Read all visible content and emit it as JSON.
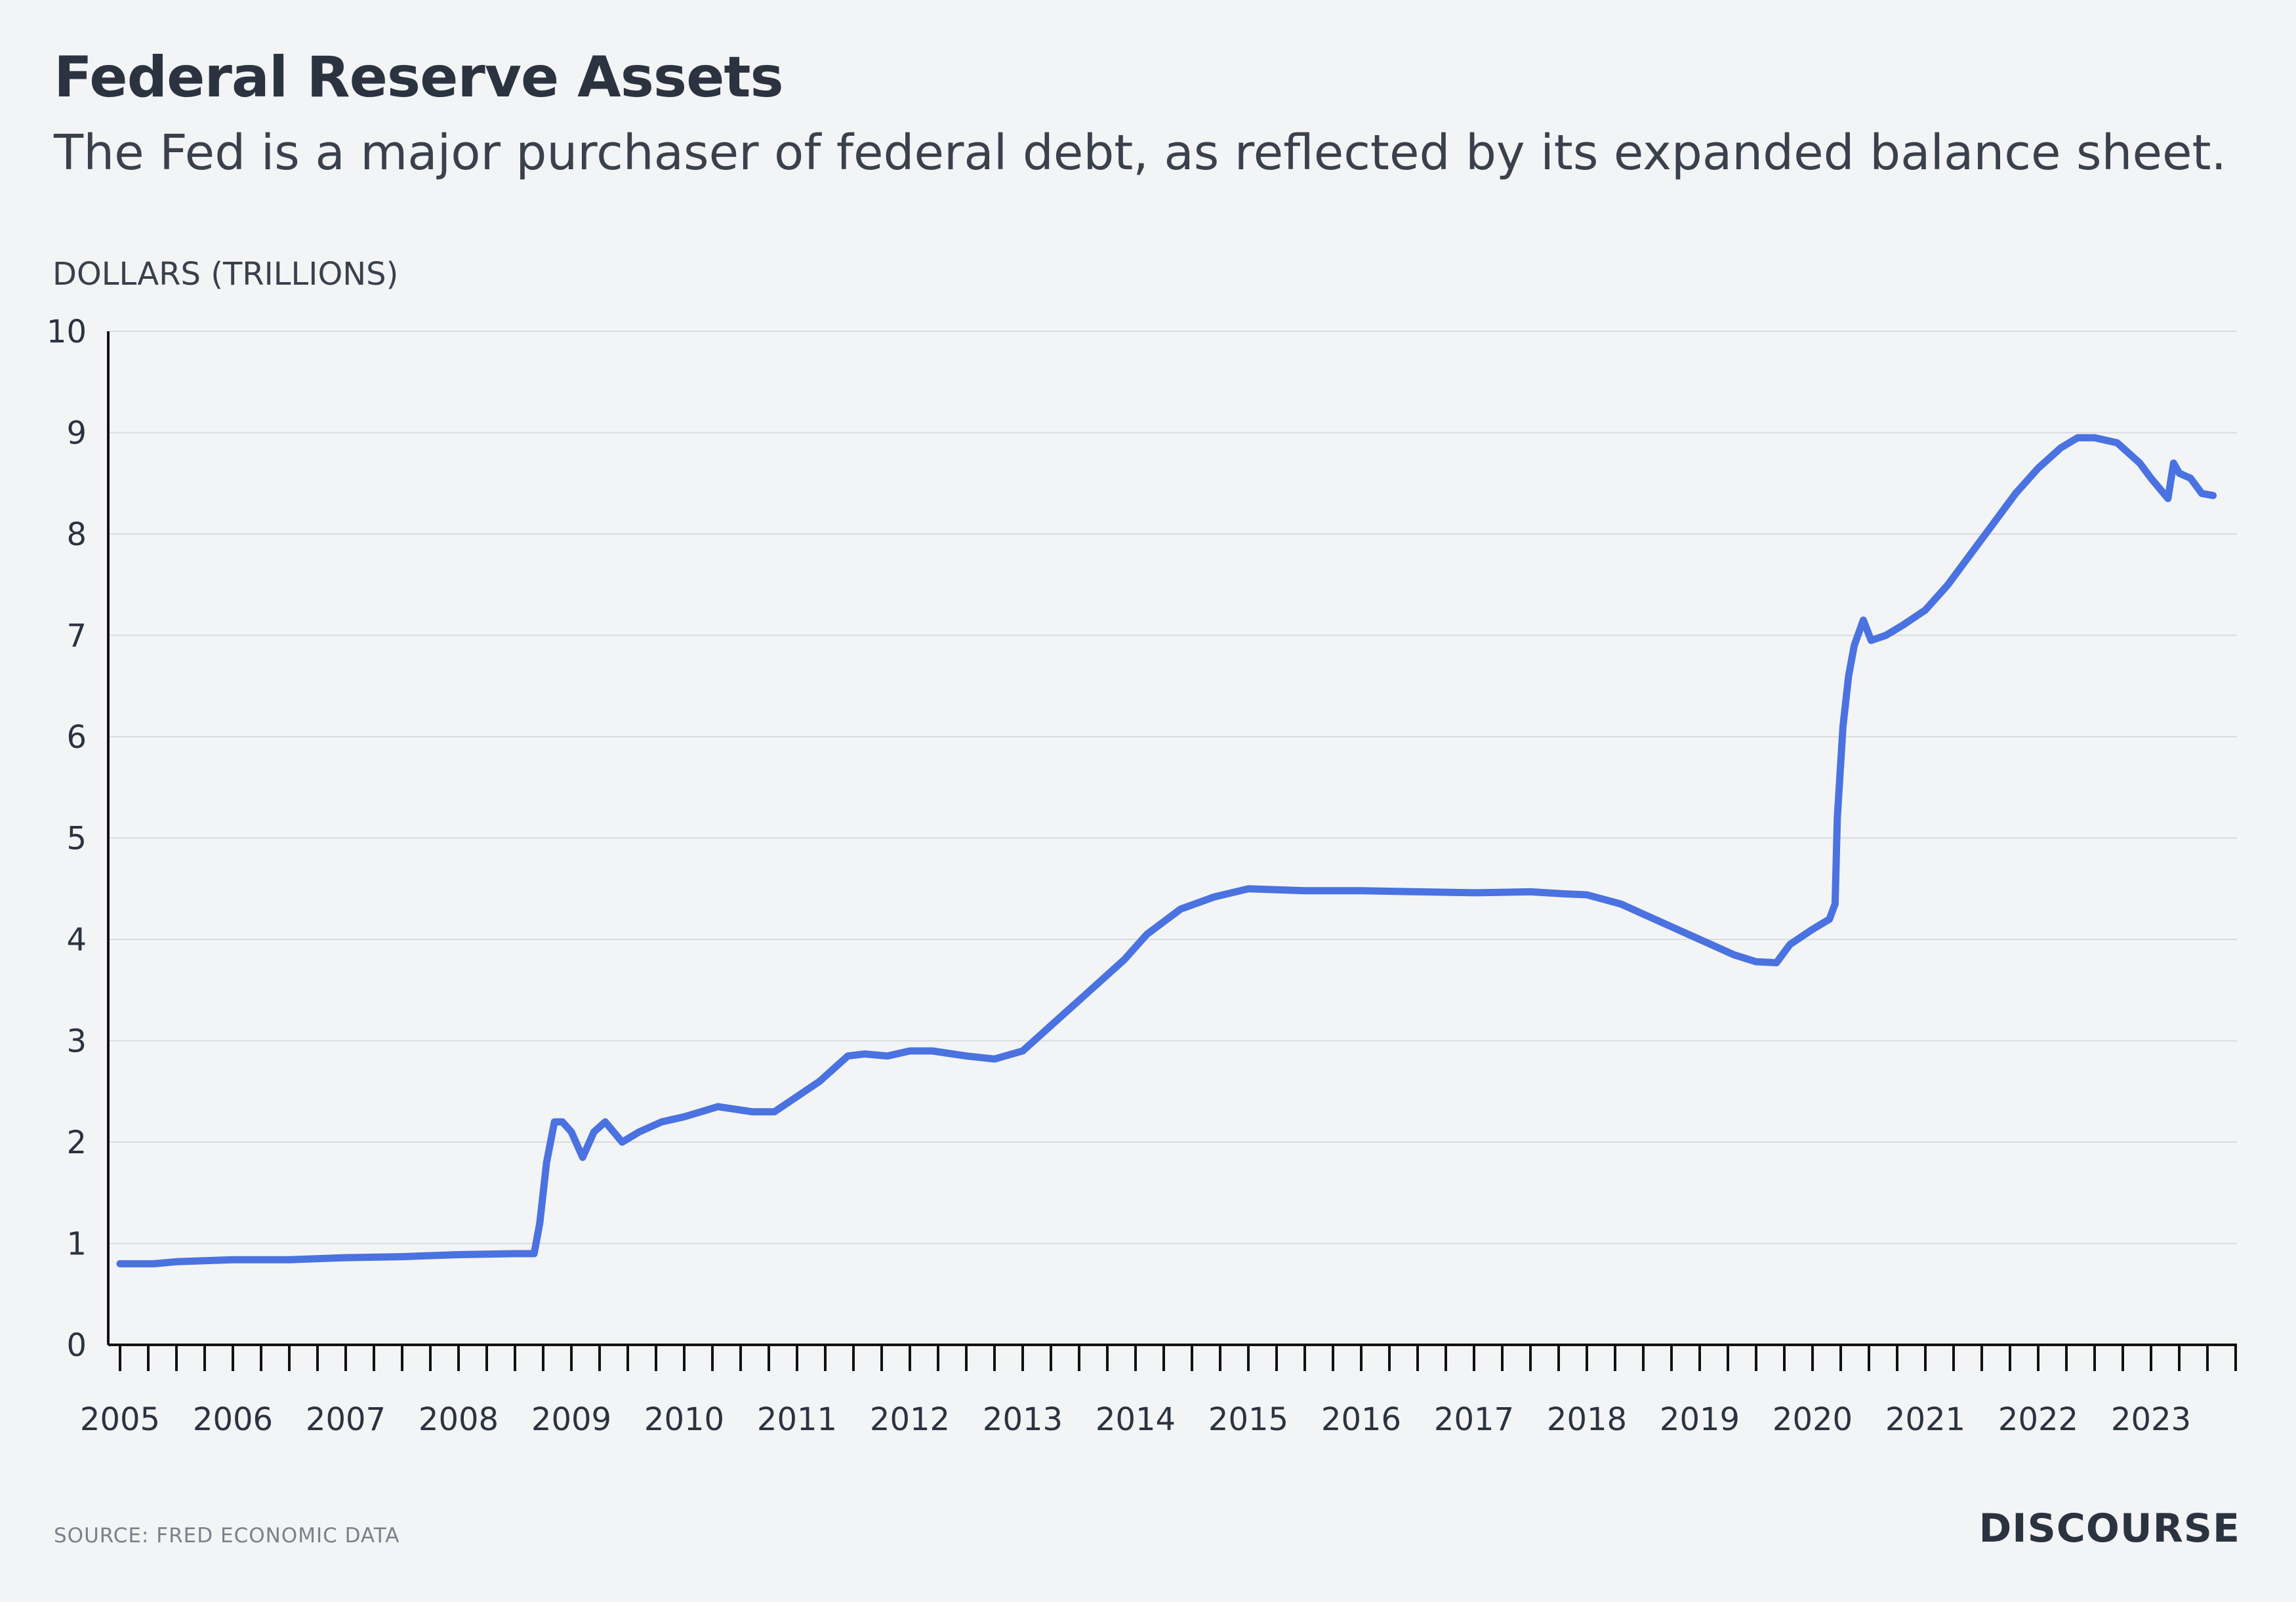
{
  "header": {
    "title": "Federal Reserve Assets",
    "subtitle": "The Fed is a major purchaser of federal debt, as reflected by its expanded balance sheet."
  },
  "footer": {
    "source": "SOURCE: FRED ECONOMIC DATA",
    "brand": "DISCOURSE"
  },
  "colors": {
    "line": "#4a72e0",
    "grid": "#d9dbde",
    "axis": "#111111",
    "background": "#f3f4f5"
  },
  "chart_data": {
    "type": "line",
    "title": "Federal Reserve Assets",
    "ylabel": "DOLLARS (TRILLIONS)",
    "xlabel": "",
    "ylim": [
      0,
      10
    ],
    "xlim": [
      2005,
      2024.2
    ],
    "y_ticks": [
      0,
      1,
      2,
      3,
      4,
      5,
      6,
      7,
      8,
      9,
      10
    ],
    "x_ticks": [
      2005,
      2006,
      2007,
      2008,
      2009,
      2010,
      2011,
      2012,
      2013,
      2014,
      2015,
      2016,
      2017,
      2018,
      2019,
      2020,
      2021,
      2022,
      2023
    ],
    "grid": true,
    "series": [
      {
        "name": "",
        "x": [
          2005.0,
          2005.3,
          2005.5,
          2006.0,
          2006.5,
          2007.0,
          2007.5,
          2008.0,
          2008.5,
          2008.67,
          2008.72,
          2008.78,
          2008.85,
          2008.92,
          2009.0,
          2009.1,
          2009.2,
          2009.3,
          2009.45,
          2009.6,
          2009.8,
          2010.0,
          2010.3,
          2010.6,
          2010.8,
          2011.0,
          2011.2,
          2011.45,
          2011.6,
          2011.8,
          2012.0,
          2012.2,
          2012.5,
          2012.75,
          2013.0,
          2013.3,
          2013.6,
          2013.9,
          2014.1,
          2014.4,
          2014.7,
          2015.0,
          2015.5,
          2016.0,
          2016.5,
          2017.0,
          2017.5,
          2017.8,
          2018.0,
          2018.3,
          2018.6,
          2018.9,
          2019.1,
          2019.3,
          2019.5,
          2019.68,
          2019.8,
          2020.0,
          2020.15,
          2020.2,
          2020.22,
          2020.27,
          2020.32,
          2020.37,
          2020.45,
          2020.52,
          2020.65,
          2020.8,
          2021.0,
          2021.2,
          2021.4,
          2021.6,
          2021.8,
          2022.0,
          2022.2,
          2022.35,
          2022.5,
          2022.7,
          2022.9,
          2023.0,
          2023.15,
          2023.2,
          2023.25,
          2023.35,
          2023.45,
          2023.55
        ],
        "values": [
          0.8,
          0.8,
          0.82,
          0.84,
          0.84,
          0.86,
          0.87,
          0.89,
          0.9,
          0.9,
          1.2,
          1.8,
          2.2,
          2.2,
          2.1,
          1.85,
          2.1,
          2.2,
          2.0,
          2.1,
          2.2,
          2.25,
          2.35,
          2.3,
          2.3,
          2.45,
          2.6,
          2.85,
          2.87,
          2.85,
          2.9,
          2.9,
          2.85,
          2.82,
          2.9,
          3.2,
          3.5,
          3.8,
          4.05,
          4.3,
          4.42,
          4.5,
          4.48,
          4.48,
          4.47,
          4.46,
          4.47,
          4.45,
          4.44,
          4.35,
          4.2,
          4.05,
          3.95,
          3.85,
          3.78,
          3.77,
          3.95,
          4.1,
          4.2,
          4.35,
          5.2,
          6.1,
          6.6,
          6.9,
          7.15,
          6.95,
          7.0,
          7.1,
          7.25,
          7.5,
          7.8,
          8.1,
          8.4,
          8.65,
          8.85,
          8.95,
          8.95,
          8.9,
          8.7,
          8.55,
          8.35,
          8.7,
          8.6,
          8.55,
          8.4,
          8.38
        ]
      }
    ]
  }
}
